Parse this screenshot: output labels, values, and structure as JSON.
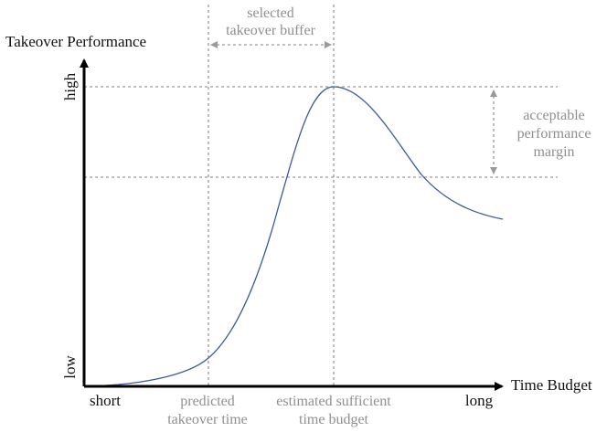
{
  "axes": {
    "y_title": "Takeover Performance",
    "x_title": "Time Budget",
    "y_low": "low",
    "y_high": "high",
    "x_short": "short",
    "x_long": "long"
  },
  "annotations": {
    "buffer_line1": "selected",
    "buffer_line2": "takeover buffer",
    "margin_line1": "acceptable",
    "margin_line2": "performance",
    "margin_line3": "margin",
    "predicted_line1": "predicted",
    "predicted_line2": "takeover time",
    "estimated_line1": "estimated sufficient",
    "estimated_line2": "time budget"
  },
  "colors": {
    "curve": "#3b5a9a",
    "guide": "#9a9a9a",
    "axis": "#000000",
    "annotation_text": "#8f8f8f"
  }
}
